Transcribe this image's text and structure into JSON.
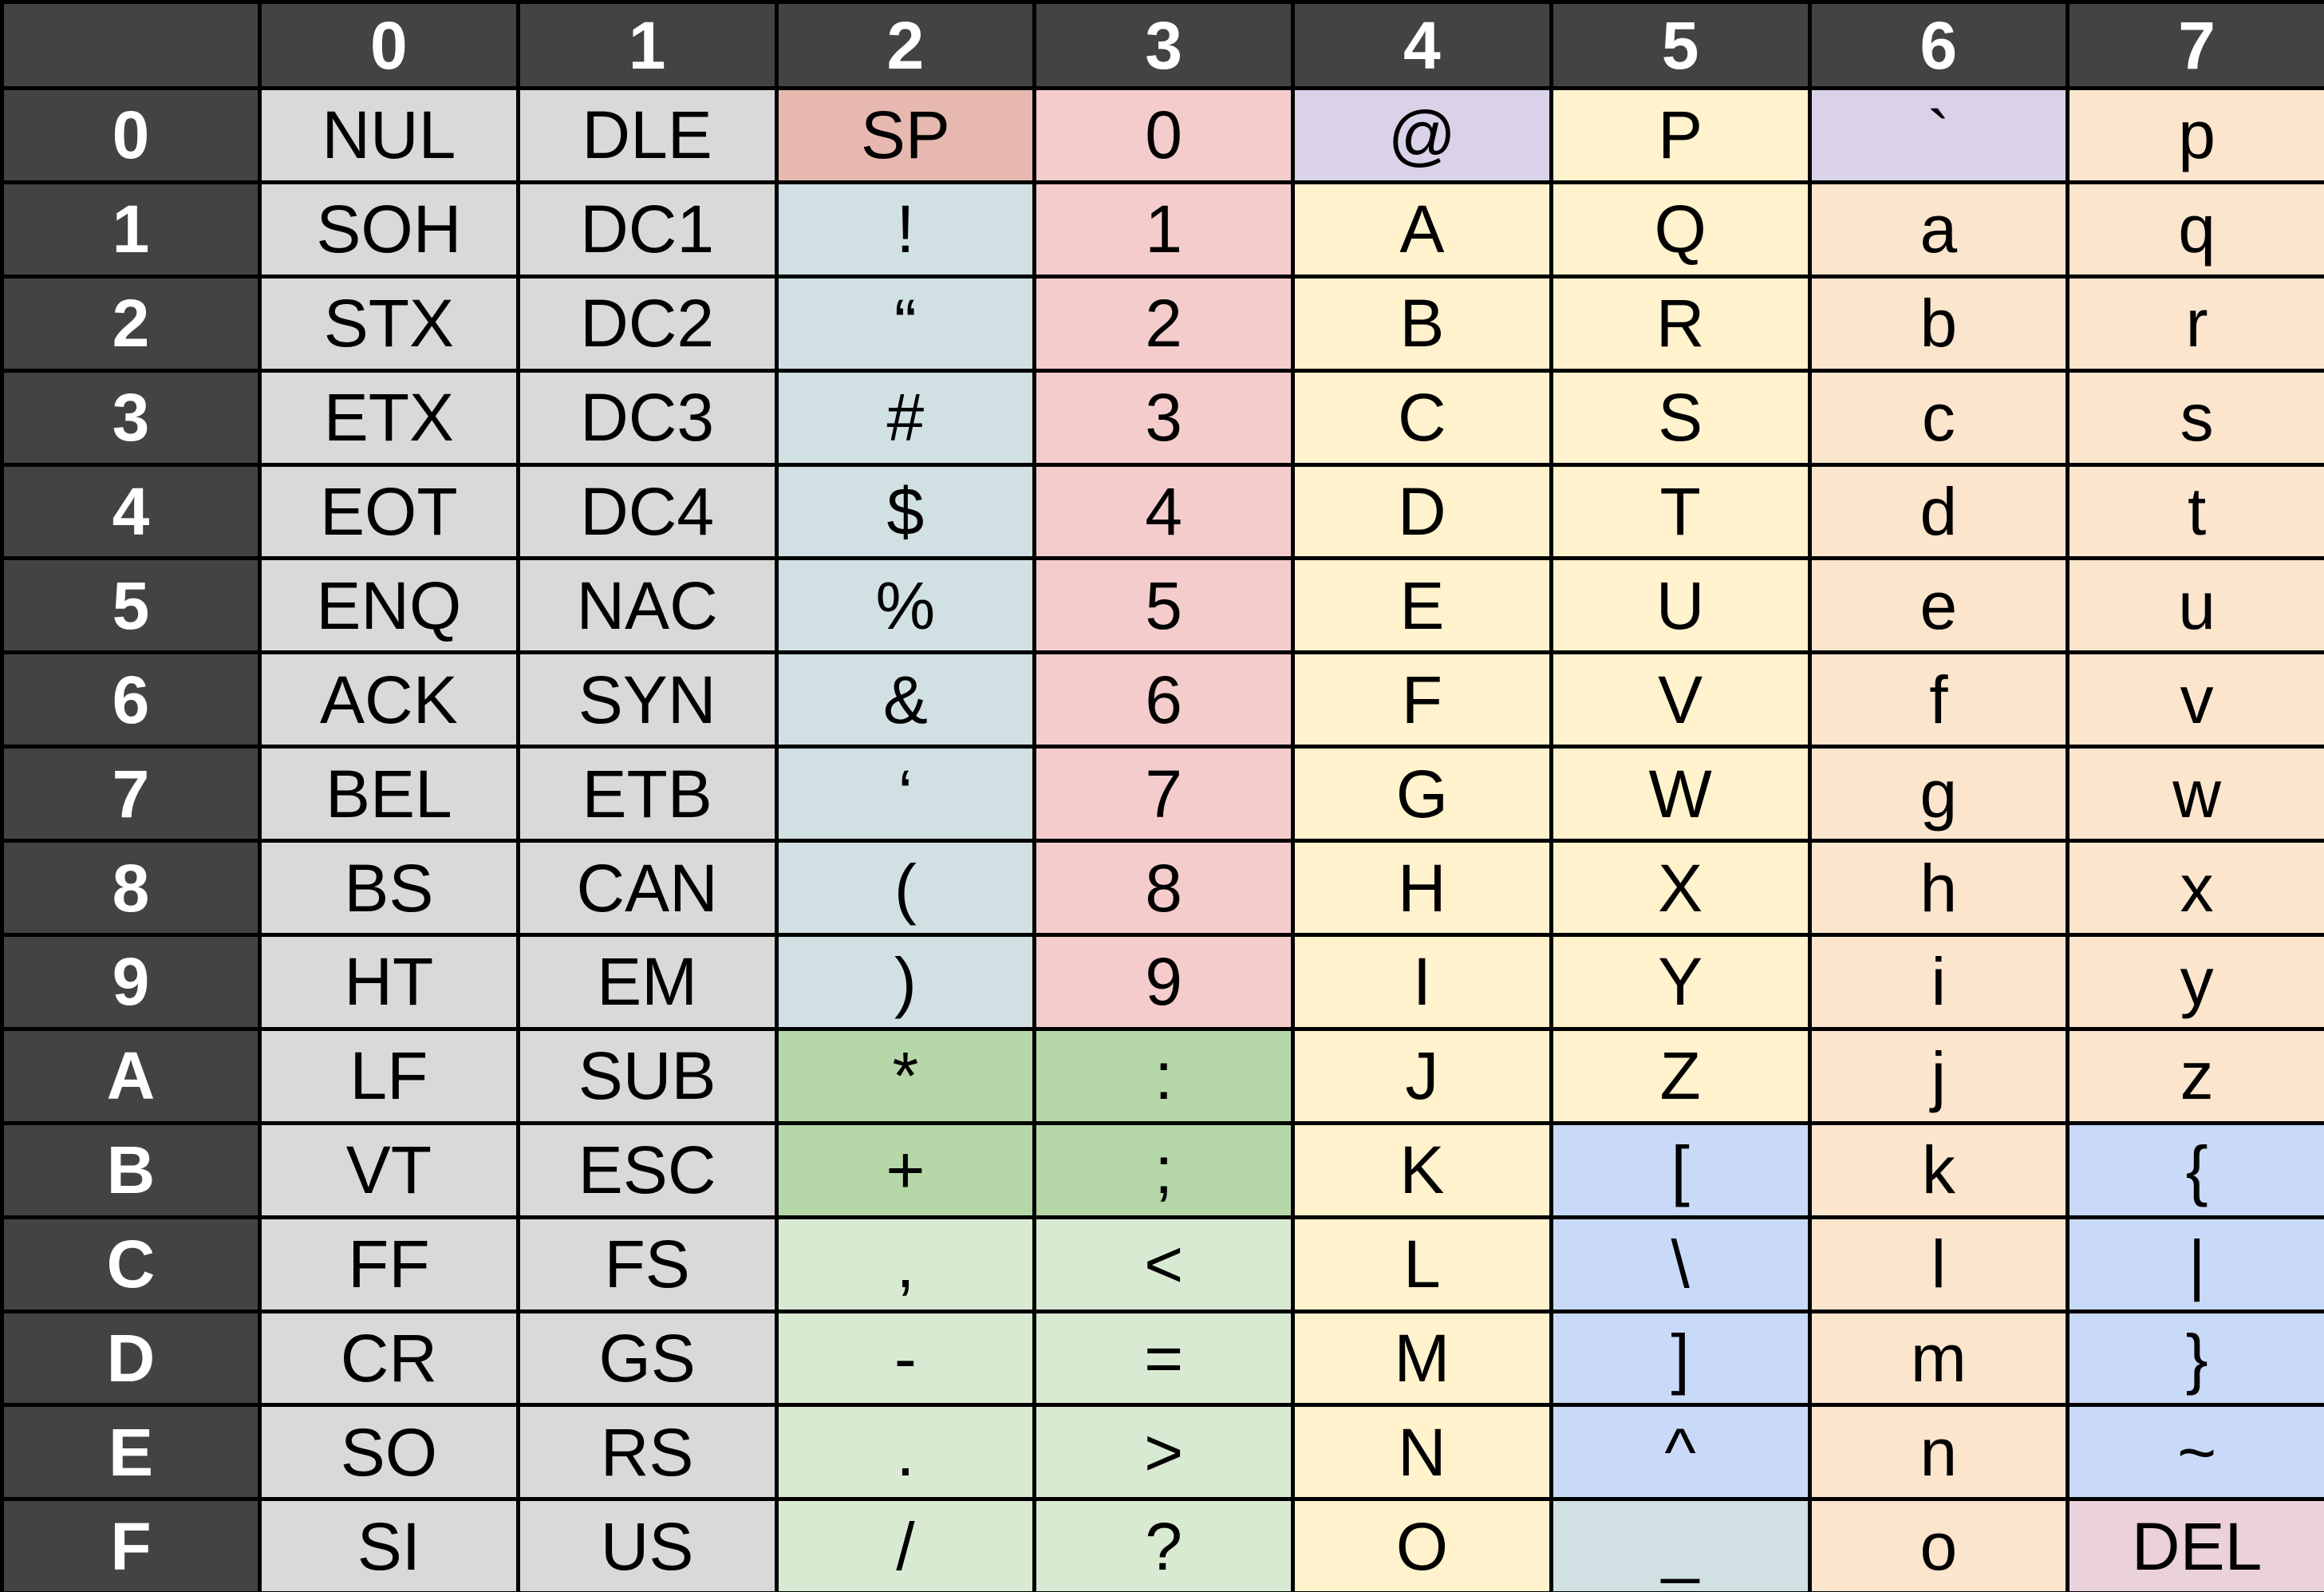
{
  "table": {
    "corner": "",
    "column_headers": [
      "0",
      "1",
      "2",
      "3",
      "4",
      "5",
      "6",
      "7"
    ],
    "row_headers": [
      "0",
      "1",
      "2",
      "3",
      "4",
      "5",
      "6",
      "7",
      "8",
      "9",
      "A",
      "B",
      "C",
      "D",
      "E",
      "F"
    ],
    "colors": {
      "header_bg": "#434343",
      "header_text": "#ffffff",
      "gray": "#d9d9d9",
      "salmon": "#e6b8af",
      "pink": "#f4cccc",
      "lavender": "#d9d2e9",
      "yellow": "#fff2cc",
      "peach": "#fce5cd",
      "blue_gray": "#d0e0e3",
      "green": "#b6d7a8",
      "light_green": "#d9ead3",
      "blue": "#c9daf8",
      "mauve": "#ead1dc"
    },
    "rows": [
      [
        {
          "t": "NUL",
          "c": "gray"
        },
        {
          "t": "DLE",
          "c": "gray"
        },
        {
          "t": "SP",
          "c": "salmon"
        },
        {
          "t": "0",
          "c": "pink"
        },
        {
          "t": "@",
          "c": "lavender"
        },
        {
          "t": "P",
          "c": "yellow"
        },
        {
          "t": "`",
          "c": "lavender"
        },
        {
          "t": "p",
          "c": "peach"
        }
      ],
      [
        {
          "t": "SOH",
          "c": "gray"
        },
        {
          "t": "DC1",
          "c": "gray"
        },
        {
          "t": "!",
          "c": "blue_gray"
        },
        {
          "t": "1",
          "c": "pink"
        },
        {
          "t": "A",
          "c": "yellow"
        },
        {
          "t": "Q",
          "c": "yellow"
        },
        {
          "t": "a",
          "c": "peach"
        },
        {
          "t": "q",
          "c": "peach"
        }
      ],
      [
        {
          "t": "STX",
          "c": "gray"
        },
        {
          "t": "DC2",
          "c": "gray"
        },
        {
          "t": "“",
          "c": "blue_gray"
        },
        {
          "t": "2",
          "c": "pink"
        },
        {
          "t": "B",
          "c": "yellow"
        },
        {
          "t": "R",
          "c": "yellow"
        },
        {
          "t": "b",
          "c": "peach"
        },
        {
          "t": "r",
          "c": "peach"
        }
      ],
      [
        {
          "t": "ETX",
          "c": "gray"
        },
        {
          "t": "DC3",
          "c": "gray"
        },
        {
          "t": "#",
          "c": "blue_gray"
        },
        {
          "t": "3",
          "c": "pink"
        },
        {
          "t": "C",
          "c": "yellow"
        },
        {
          "t": "S",
          "c": "yellow"
        },
        {
          "t": "c",
          "c": "peach"
        },
        {
          "t": "s",
          "c": "peach"
        }
      ],
      [
        {
          "t": "EOT",
          "c": "gray"
        },
        {
          "t": "DC4",
          "c": "gray"
        },
        {
          "t": "$",
          "c": "blue_gray"
        },
        {
          "t": "4",
          "c": "pink"
        },
        {
          "t": "D",
          "c": "yellow"
        },
        {
          "t": "T",
          "c": "yellow"
        },
        {
          "t": "d",
          "c": "peach"
        },
        {
          "t": "t",
          "c": "peach"
        }
      ],
      [
        {
          "t": "ENQ",
          "c": "gray"
        },
        {
          "t": "NAC",
          "c": "gray"
        },
        {
          "t": "%",
          "c": "blue_gray"
        },
        {
          "t": "5",
          "c": "pink"
        },
        {
          "t": "E",
          "c": "yellow"
        },
        {
          "t": "U",
          "c": "yellow"
        },
        {
          "t": "e",
          "c": "peach"
        },
        {
          "t": "u",
          "c": "peach"
        }
      ],
      [
        {
          "t": "ACK",
          "c": "gray"
        },
        {
          "t": "SYN",
          "c": "gray"
        },
        {
          "t": "&",
          "c": "blue_gray"
        },
        {
          "t": "6",
          "c": "pink"
        },
        {
          "t": "F",
          "c": "yellow"
        },
        {
          "t": "V",
          "c": "yellow"
        },
        {
          "t": "f",
          "c": "peach"
        },
        {
          "t": "v",
          "c": "peach"
        }
      ],
      [
        {
          "t": "BEL",
          "c": "gray"
        },
        {
          "t": "ETB",
          "c": "gray"
        },
        {
          "t": "‘",
          "c": "blue_gray"
        },
        {
          "t": "7",
          "c": "pink"
        },
        {
          "t": "G",
          "c": "yellow"
        },
        {
          "t": "W",
          "c": "yellow"
        },
        {
          "t": "g",
          "c": "peach"
        },
        {
          "t": "w",
          "c": "peach"
        }
      ],
      [
        {
          "t": "BS",
          "c": "gray"
        },
        {
          "t": "CAN",
          "c": "gray"
        },
        {
          "t": "(",
          "c": "blue_gray"
        },
        {
          "t": "8",
          "c": "pink"
        },
        {
          "t": "H",
          "c": "yellow"
        },
        {
          "t": "X",
          "c": "yellow"
        },
        {
          "t": "h",
          "c": "peach"
        },
        {
          "t": "x",
          "c": "peach"
        }
      ],
      [
        {
          "t": "HT",
          "c": "gray"
        },
        {
          "t": "EM",
          "c": "gray"
        },
        {
          "t": ")",
          "c": "blue_gray"
        },
        {
          "t": "9",
          "c": "pink"
        },
        {
          "t": "I",
          "c": "yellow"
        },
        {
          "t": "Y",
          "c": "yellow"
        },
        {
          "t": "i",
          "c": "peach"
        },
        {
          "t": "y",
          "c": "peach"
        }
      ],
      [
        {
          "t": "LF",
          "c": "gray"
        },
        {
          "t": "SUB",
          "c": "gray"
        },
        {
          "t": "*",
          "c": "green"
        },
        {
          "t": ":",
          "c": "green"
        },
        {
          "t": "J",
          "c": "yellow"
        },
        {
          "t": "Z",
          "c": "yellow"
        },
        {
          "t": "j",
          "c": "peach"
        },
        {
          "t": "z",
          "c": "peach"
        }
      ],
      [
        {
          "t": "VT",
          "c": "gray"
        },
        {
          "t": "ESC",
          "c": "gray"
        },
        {
          "t": "+",
          "c": "green"
        },
        {
          "t": ";",
          "c": "green"
        },
        {
          "t": "K",
          "c": "yellow"
        },
        {
          "t": "[",
          "c": "blue"
        },
        {
          "t": "k",
          "c": "peach"
        },
        {
          "t": "{",
          "c": "blue"
        }
      ],
      [
        {
          "t": "FF",
          "c": "gray"
        },
        {
          "t": "FS",
          "c": "gray"
        },
        {
          "t": ",",
          "c": "light_green"
        },
        {
          "t": "<",
          "c": "light_green"
        },
        {
          "t": "L",
          "c": "yellow"
        },
        {
          "t": "\\",
          "c": "blue"
        },
        {
          "t": "l",
          "c": "peach"
        },
        {
          "t": "|",
          "c": "blue"
        }
      ],
      [
        {
          "t": "CR",
          "c": "gray"
        },
        {
          "t": "GS",
          "c": "gray"
        },
        {
          "t": "-",
          "c": "light_green"
        },
        {
          "t": "=",
          "c": "light_green"
        },
        {
          "t": "M",
          "c": "yellow"
        },
        {
          "t": "]",
          "c": "blue"
        },
        {
          "t": "m",
          "c": "peach"
        },
        {
          "t": "}",
          "c": "blue"
        }
      ],
      [
        {
          "t": "SO",
          "c": "gray"
        },
        {
          "t": "RS",
          "c": "gray"
        },
        {
          "t": ".",
          "c": "light_green"
        },
        {
          "t": ">",
          "c": "light_green"
        },
        {
          "t": "N",
          "c": "yellow"
        },
        {
          "t": "^",
          "c": "blue"
        },
        {
          "t": "n",
          "c": "peach"
        },
        {
          "t": "~",
          "c": "blue"
        }
      ],
      [
        {
          "t": "SI",
          "c": "gray"
        },
        {
          "t": "US",
          "c": "gray"
        },
        {
          "t": "/",
          "c": "light_green"
        },
        {
          "t": "?",
          "c": "light_green"
        },
        {
          "t": "O",
          "c": "yellow"
        },
        {
          "t": "_",
          "c": "blue_gray"
        },
        {
          "t": "o",
          "c": "peach"
        },
        {
          "t": "DEL",
          "c": "mauve"
        }
      ]
    ]
  }
}
